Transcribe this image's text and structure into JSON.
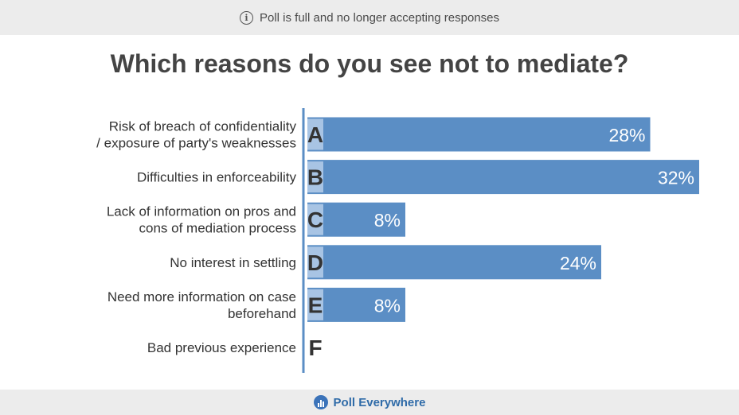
{
  "banner": {
    "text": "Poll is full and no longer accepting responses",
    "icon": "info-icon"
  },
  "footer": {
    "brand": "Poll Everywhere",
    "icon": "poll-everywhere-logo-icon"
  },
  "colors": {
    "bar": "#5b8ec5",
    "letter_box": "#a8c4e4",
    "axis": "#5b8ec5",
    "text": "#333333"
  },
  "chart_data": {
    "type": "bar",
    "orientation": "horizontal",
    "title": "Which reasons do you see not to mediate?",
    "unit": "%",
    "xlim": [
      0,
      32
    ],
    "categories": [
      {
        "letter": "A",
        "label": [
          "Risk of breach of confidentiality",
          "/ exposure of party's weaknesses"
        ],
        "value": 28,
        "value_label": "28%"
      },
      {
        "letter": "B",
        "label": [
          "Difficulties in enforceability"
        ],
        "value": 32,
        "value_label": "32%"
      },
      {
        "letter": "C",
        "label": [
          "Lack of information on pros and",
          "cons of mediation process"
        ],
        "value": 8,
        "value_label": "8%"
      },
      {
        "letter": "D",
        "label": [
          "No interest in settling"
        ],
        "value": 24,
        "value_label": "24%"
      },
      {
        "letter": "E",
        "label": [
          "Need more information on case",
          "beforehand"
        ],
        "value": 8,
        "value_label": "8%"
      },
      {
        "letter": "F",
        "label": [
          "Bad previous experience"
        ],
        "value": 0,
        "value_label": ""
      }
    ]
  }
}
